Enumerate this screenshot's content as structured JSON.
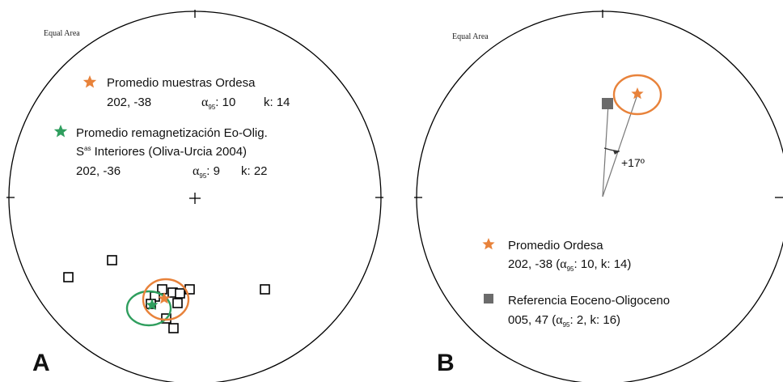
{
  "panel_a": {
    "projection_label": "Equal Area",
    "panel_letter": "A",
    "legend": {
      "ordesa": {
        "title": "Promedio muestras Ordesa",
        "dec_inc": "202, -38",
        "alpha_symbol": "α",
        "alpha_sub": "95",
        "alpha_val": ": 10",
        "k": "k: 14"
      },
      "remag": {
        "line1": "Promedio remagnetización Eo-Olig.",
        "line2_s": "S",
        "line2_sup": "as",
        "line2_rest": " Interiores (Oliva-Urcia 2004)",
        "dec_inc": "202, -36",
        "alpha_symbol": "α",
        "alpha_sub": "95",
        "alpha_val": ": 9",
        "k": "k: 22"
      }
    },
    "markers": {
      "ordesa_mean": {
        "color": "#e8823a",
        "symbol": "star",
        "dec": 202,
        "inc": -38,
        "a95": 10
      },
      "remag_mean": {
        "color": "#2f9e5e",
        "symbol": "star",
        "dec": 202,
        "inc": -36,
        "a95": 9
      }
    }
  },
  "panel_b": {
    "projection_label": "Equal Area",
    "panel_letter": "B",
    "rotation_label": "+17º",
    "legend": {
      "ordesa": {
        "title": "Promedio Ordesa",
        "text_pre": "202, -38 (",
        "alpha_symbol": "α",
        "alpha_sub": "95",
        "text_post": ": 10,  k: 14)"
      },
      "reference": {
        "title": "Referencia Eoceno-Oligoceno",
        "text_pre": "005, 47 (",
        "alpha_symbol": "α",
        "alpha_sub": "95",
        "text_post": ": 2,  k: 16)"
      }
    },
    "markers": {
      "ordesa_mean": {
        "color": "#e8823a",
        "symbol": "star"
      },
      "reference": {
        "color": "#6b6b6b",
        "symbol": "square"
      }
    }
  }
}
